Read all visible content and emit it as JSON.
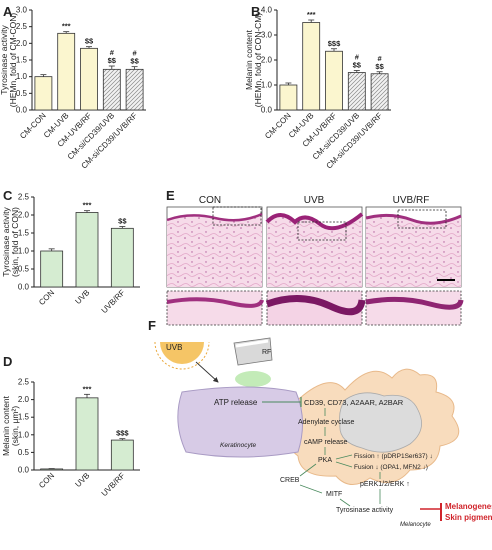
{
  "panel_letters": {
    "A": "A",
    "B": "B",
    "C": "C",
    "D": "D",
    "E": "E",
    "F": "F"
  },
  "colors": {
    "yellow": "#fbf6cf",
    "green": "#d5ecd1",
    "border": "#333333",
    "hatch": "#8a8a8a",
    "red": "#d0242b"
  },
  "chart_data": [
    {
      "id": "A",
      "type": "bar",
      "ylabel": "Tyrosinase activity",
      "ylabel2": "(HEMn, fold of CM-CON)",
      "ylim": [
        0,
        3
      ],
      "yticks": [
        "0.0",
        "0.5",
        "1.0",
        "1.5",
        "2.0",
        "2.5",
        "3.0"
      ],
      "categories": [
        "CM-CON",
        "CM-UVB",
        "CM-UVB/RF",
        "CM-si/CD39/UVB",
        "CM-si/CD39/UVB/RF"
      ],
      "values": [
        1.0,
        2.3,
        1.85,
        1.22,
        1.22
      ],
      "errors": [
        0.06,
        0.05,
        0.05,
        0.1,
        0.08
      ],
      "fill": [
        "yellow",
        "yellow",
        "yellow",
        "hatch",
        "hatch"
      ],
      "sig": [
        [],
        [
          "***"
        ],
        [
          "$$"
        ],
        [
          "#",
          "$$"
        ],
        [
          "#",
          "$$"
        ]
      ]
    },
    {
      "id": "B",
      "type": "bar",
      "ylabel": "Melanin content",
      "ylabel2": "(HEMn, fold of CON-CM)",
      "ylim": [
        0,
        4
      ],
      "yticks": [
        "0.0",
        "1.0",
        "2.0",
        "3.0",
        "4.0"
      ],
      "categories": [
        "CM-CON",
        "CM-UVB",
        "CM-UVB/RF",
        "CM-si/CD39/UVB",
        "CM-si/CD39/UVB/RF"
      ],
      "values": [
        1.0,
        3.5,
        2.35,
        1.5,
        1.45
      ],
      "errors": [
        0.08,
        0.1,
        0.1,
        0.08,
        0.08
      ],
      "fill": [
        "yellow",
        "yellow",
        "yellow",
        "hatch",
        "hatch"
      ],
      "sig": [
        [],
        [
          "***"
        ],
        [
          "$$$"
        ],
        [
          "#",
          "$$"
        ],
        [
          "#",
          "$$"
        ]
      ]
    },
    {
      "id": "C",
      "type": "bar",
      "ylabel": "Tyrosinase activity",
      "ylabel2": "(skin, fold of CON)",
      "ylim": [
        0,
        2.5
      ],
      "yticks": [
        "0.0",
        "0.5",
        "1.0",
        "1.5",
        "2.0",
        "2.5"
      ],
      "categories": [
        "CON",
        "UVB",
        "UVB/RF"
      ],
      "values": [
        1.0,
        2.07,
        1.63
      ],
      "errors": [
        0.06,
        0.05,
        0.05
      ],
      "fill": [
        "green",
        "green",
        "green"
      ],
      "sig": [
        [],
        [
          "***"
        ],
        [
          "$$"
        ]
      ]
    },
    {
      "id": "D",
      "type": "bar",
      "ylabel": "Melanin content",
      "ylabel2": "(skin, μm²)",
      "ylim": [
        0,
        2.5
      ],
      "yticks": [
        "0.0",
        "0.5",
        "1.0",
        "1.5",
        "2.0",
        "2.5"
      ],
      "categories": [
        "CON",
        "UVB",
        "UVB/RF"
      ],
      "values": [
        0.03,
        2.05,
        0.85
      ],
      "errors": [
        0.01,
        0.1,
        0.04
      ],
      "fill": [
        "green",
        "green",
        "green"
      ],
      "sig": [
        [],
        [
          "***"
        ],
        [
          "$$$"
        ]
      ]
    }
  ],
  "histology": {
    "labels": [
      "CON",
      "UVB",
      "UVB/RF"
    ]
  },
  "diagram": {
    "uvb": "UVB",
    "rf": "RF",
    "atp": "ATP release",
    "receptors": "CD39, CD73, A2AAR, A2BAR",
    "keratinocyte": "Keratinocyte",
    "melanocyte": "Melanocyte",
    "adenylate": "Adenylate cyclase",
    "camp": "cAMP release",
    "pka": "PKA",
    "creb": "CREB",
    "mitf": "MITF",
    "fission": "Fission ↑ (pDRP1Ser637) ↓",
    "fusion": "Fusion ↓ (OPA1, MFN2 ↓)",
    "perk": "pERK1/2/ERK ↑",
    "tyro": "Tyrosinase activity",
    "melanogenesis": "Melanogenesis",
    "pigmentation": "Skin pigmentation"
  }
}
